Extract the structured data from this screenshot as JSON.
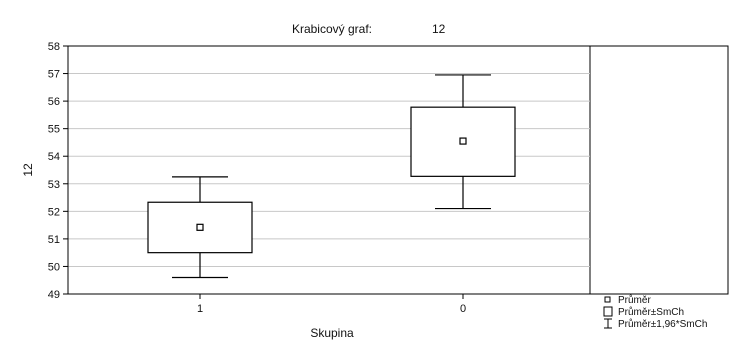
{
  "chart_data": {
    "type": "box",
    "title": "Krabicový graf:",
    "title_value": "12",
    "xlabel": "Skupina",
    "ylabel": "12",
    "ylim": [
      49,
      58
    ],
    "yticks": [
      49,
      50,
      51,
      52,
      53,
      54,
      55,
      56,
      57,
      58
    ],
    "grid": true,
    "legend_position": "bottom-right",
    "categories": [
      "1",
      "0"
    ],
    "boxes": [
      {
        "category": "1",
        "mean": 51.42,
        "box_low": 50.5,
        "box_high": 52.33,
        "whisker_low": 49.6,
        "whisker_high": 53.25
      },
      {
        "category": "0",
        "mean": 54.55,
        "box_low": 53.27,
        "box_high": 55.78,
        "whisker_low": 52.1,
        "whisker_high": 56.95
      }
    ],
    "legend": [
      {
        "symbol": "point",
        "label": "Průměr"
      },
      {
        "symbol": "box",
        "label": "Průměr±SmCh"
      },
      {
        "symbol": "whisker",
        "label": "Průměr±1,96*SmCh"
      }
    ]
  }
}
